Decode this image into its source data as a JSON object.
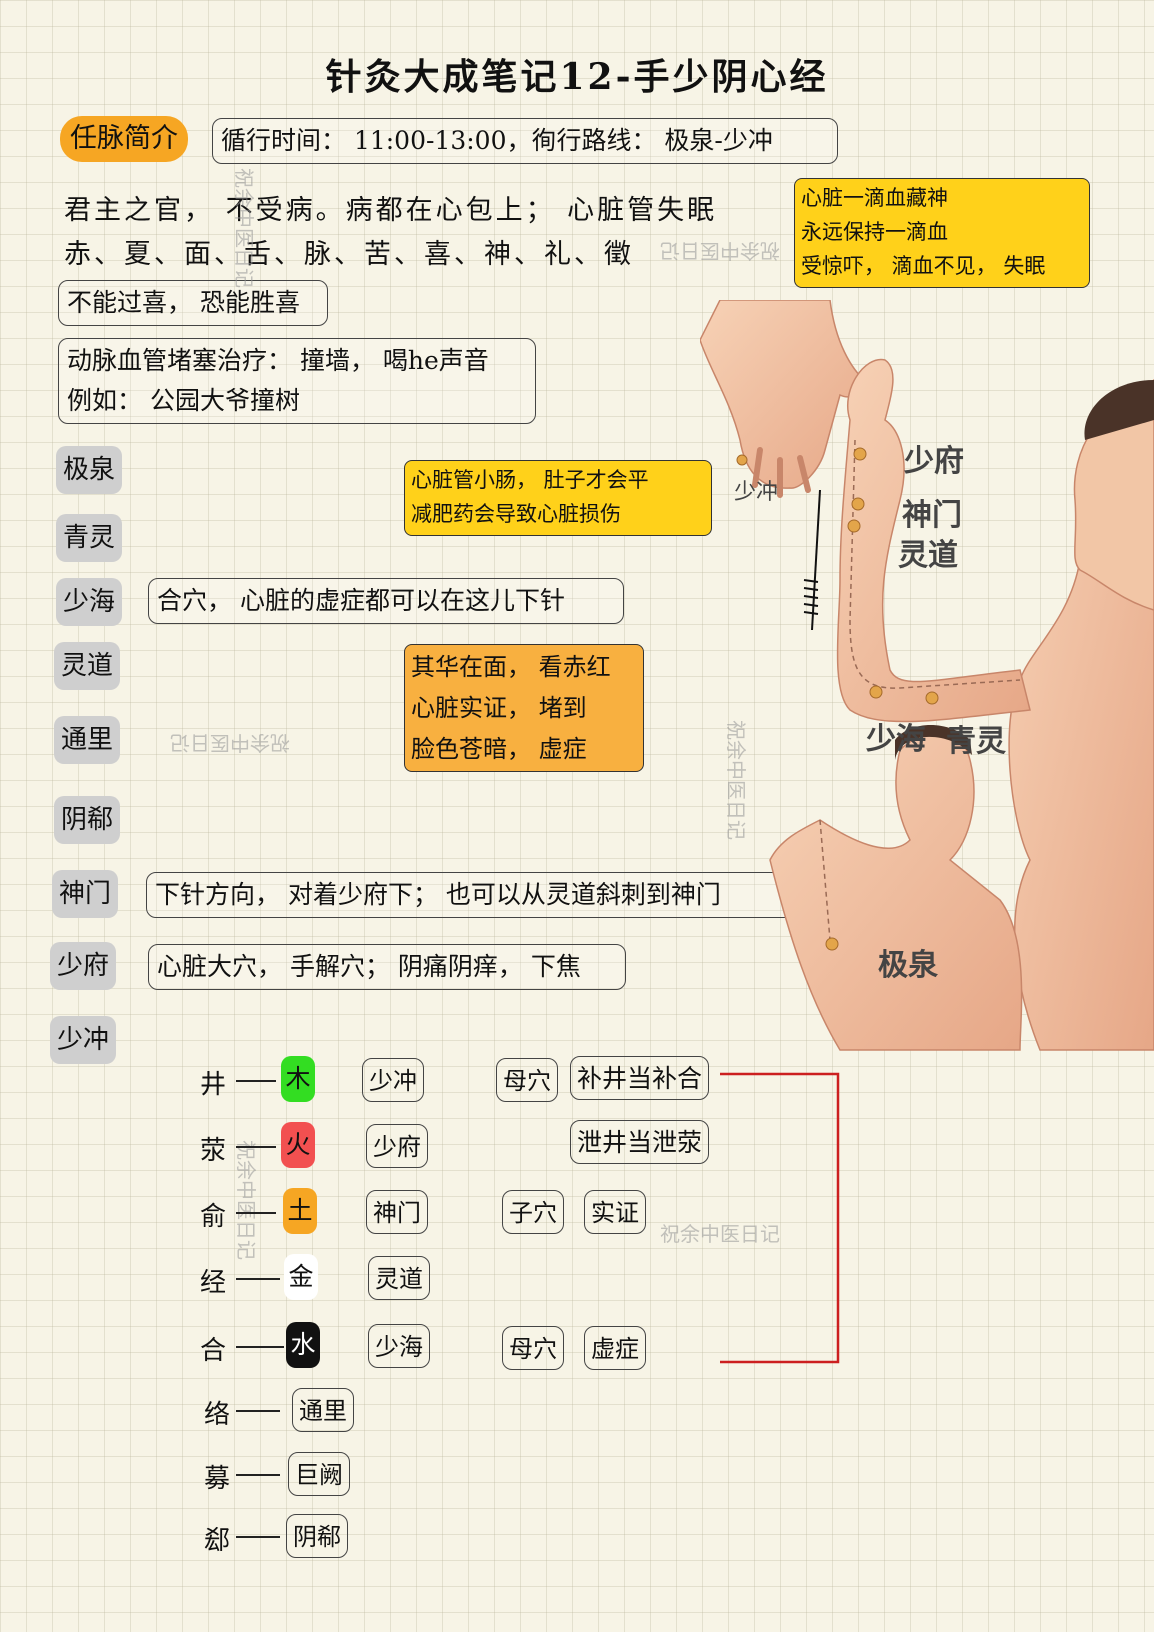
{
  "title": "针灸大成笔记12-手少阴心经",
  "intro_badge": "任脉简介",
  "route_box": "循行时间： 11:00-13:00，徇行路线： 极泉-少冲",
  "line1": "君主之官， 不受病。病都在心包上； 心脏管失眠",
  "line2": "赤、夏、面、舌、脉、苦、喜、神、礼、徵",
  "box_joy": "不能过喜， 恐能胜喜",
  "box_artery": [
    "动脉血管堵塞治疗： 撞墙， 喝he声音",
    "例如： 公园大爷撞树"
  ],
  "note_blood": [
    "心脏一滴血藏神",
    "永远保持一滴血",
    "受惊吓， 滴血不见， 失眠"
  ],
  "note_small": [
    "心脏管小肠， 肚子才会平",
    "减肥药会导致心脏损伤"
  ],
  "note_face": [
    "其华在面， 看赤红",
    "心脏实证， 堵到",
    "脸色苍暗， 虚症"
  ],
  "points": [
    "极泉",
    "青灵",
    "少海",
    "灵道",
    "通里",
    "阴郗",
    "神门",
    "少府",
    "少冲"
  ],
  "point_notes": {
    "shaohai": "合穴， 心脏的虚症都可以在这儿下针",
    "shenmen": "下针方向， 对着少府下； 也可以从灵道斜刺到神门",
    "shaofu": "心脏大穴， 手解穴； 阴痛阴痒， 下焦"
  },
  "watermark": "祝余中医日记",
  "figure_labels": {
    "shaochong": "少冲",
    "shaofu": "少府",
    "shenmen": "神门",
    "lingdao": "灵道",
    "shaohai": "少海",
    "qingling": "青灵",
    "jiquan": "极泉"
  },
  "wuxing_rows": [
    {
      "label": "井",
      "element": "木",
      "color": "#33dd22",
      "text_color": "#111",
      "acupoint": "少冲"
    },
    {
      "label": "荥",
      "element": "火",
      "color": "#f25050",
      "text_color": "#111",
      "acupoint": "少府"
    },
    {
      "label": "俞",
      "element": "土",
      "color": "#f6a623",
      "text_color": "#111",
      "acupoint": "神门"
    },
    {
      "label": "经",
      "element": "金",
      "color": "#ffffff",
      "text_color": "#111",
      "acupoint": "灵道"
    },
    {
      "label": "合",
      "element": "水",
      "color": "#111111",
      "text_color": "#ffffff",
      "acupoint": "少海"
    }
  ],
  "special_rows": [
    {
      "label": "络",
      "acupoint": "通里"
    },
    {
      "label": "募",
      "acupoint": "巨阙"
    },
    {
      "label": "郄",
      "acupoint": "阴郗"
    }
  ],
  "mother_1": "母穴",
  "rule_1": "补井当补合",
  "rule_2": "泄井当泄荥",
  "child": "子穴",
  "shizheng": "实证",
  "mother_2": "母穴",
  "xuzheng": "虚症",
  "connector_color": "#cc1f1f"
}
